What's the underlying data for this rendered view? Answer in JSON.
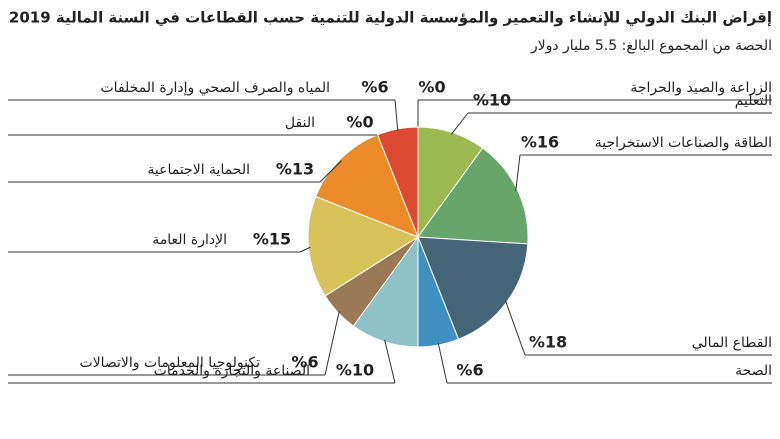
{
  "chart_data": {
    "type": "pie",
    "title": "إقراض البنك الدولي للإنشاء والتعمير والمؤسسة الدولية للتنمية حسب القطاعات في السنة المالية 2019",
    "subtitle": "الحصة من المجموع البالغ: 5.5 مليار دولار",
    "categories": [
      "الزراعة والصيد والحراجة",
      "التعليم",
      "الطاقة والصناعات الاستخراجية",
      "القطاع المالي",
      "الصحة",
      "الصناعة والتجارة والخدمات",
      "تكنولوجيا المعلومات والاتصالات",
      "الإدارة العامة",
      "الحماية الاجتماعية",
      "النقل",
      "المياه والصرف الصحي وإدارة المخلفات"
    ],
    "values": [
      0,
      10,
      16,
      18,
      6,
      10,
      6,
      15,
      13,
      0,
      6
    ],
    "value_labels": [
      "%0",
      "%10",
      "%16",
      "%18",
      "%6",
      "%10",
      "%6",
      "%15",
      "%13",
      "%0",
      "%6"
    ],
    "colors": [
      "#9dba52",
      "#9dba52",
      "#67a56a",
      "#466677",
      "#3f8fc1",
      "#8ec1c8",
      "#9b7856",
      "#d9c25a",
      "#ec8b2a",
      "#4a6fa5",
      "#dc4a34"
    ]
  }
}
